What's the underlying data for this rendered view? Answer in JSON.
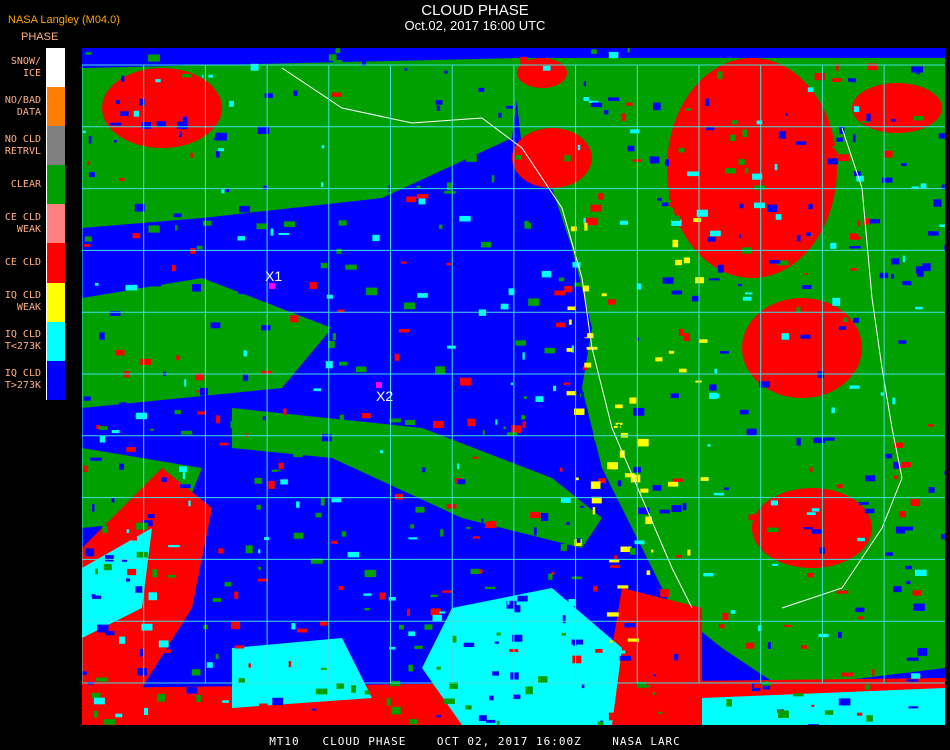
{
  "header": {
    "title": "CLOUD PHASE",
    "subtitle": "Oct.02, 2017 16:00 UTC",
    "organization": "NASA Langley (M04.0)",
    "legend_title": "PHASE"
  },
  "legend": [
    {
      "label": "SNOW/\nICE",
      "color": "#ffffff"
    },
    {
      "label": "NO/BAD\nDATA",
      "color": "#ff8000"
    },
    {
      "label": "NO CLD\nRETRVL",
      "color": "#808080"
    },
    {
      "label": "CLEAR",
      "color": "#00a000"
    },
    {
      "label": "CE CLD\nWEAK",
      "color": "#ff8080"
    },
    {
      "label": "CE CLD",
      "color": "#ff0000"
    },
    {
      "label": "IQ CLD\nWEAK",
      "color": "#ffff00"
    },
    {
      "label": "IQ CLD\nT<273K",
      "color": "#00ffff"
    },
    {
      "label": "IQ CLD\nT>273K",
      "color": "#0000ff"
    }
  ],
  "markers": [
    {
      "label": "X1",
      "color": "#ff00ff"
    },
    {
      "label": "X2",
      "color": "#ff00ff"
    }
  ],
  "grid_color": "#40e0e0",
  "footer": "MT10   CLOUD PHASE    OCT 02, 2017 16:00Z    NASA LARC"
}
